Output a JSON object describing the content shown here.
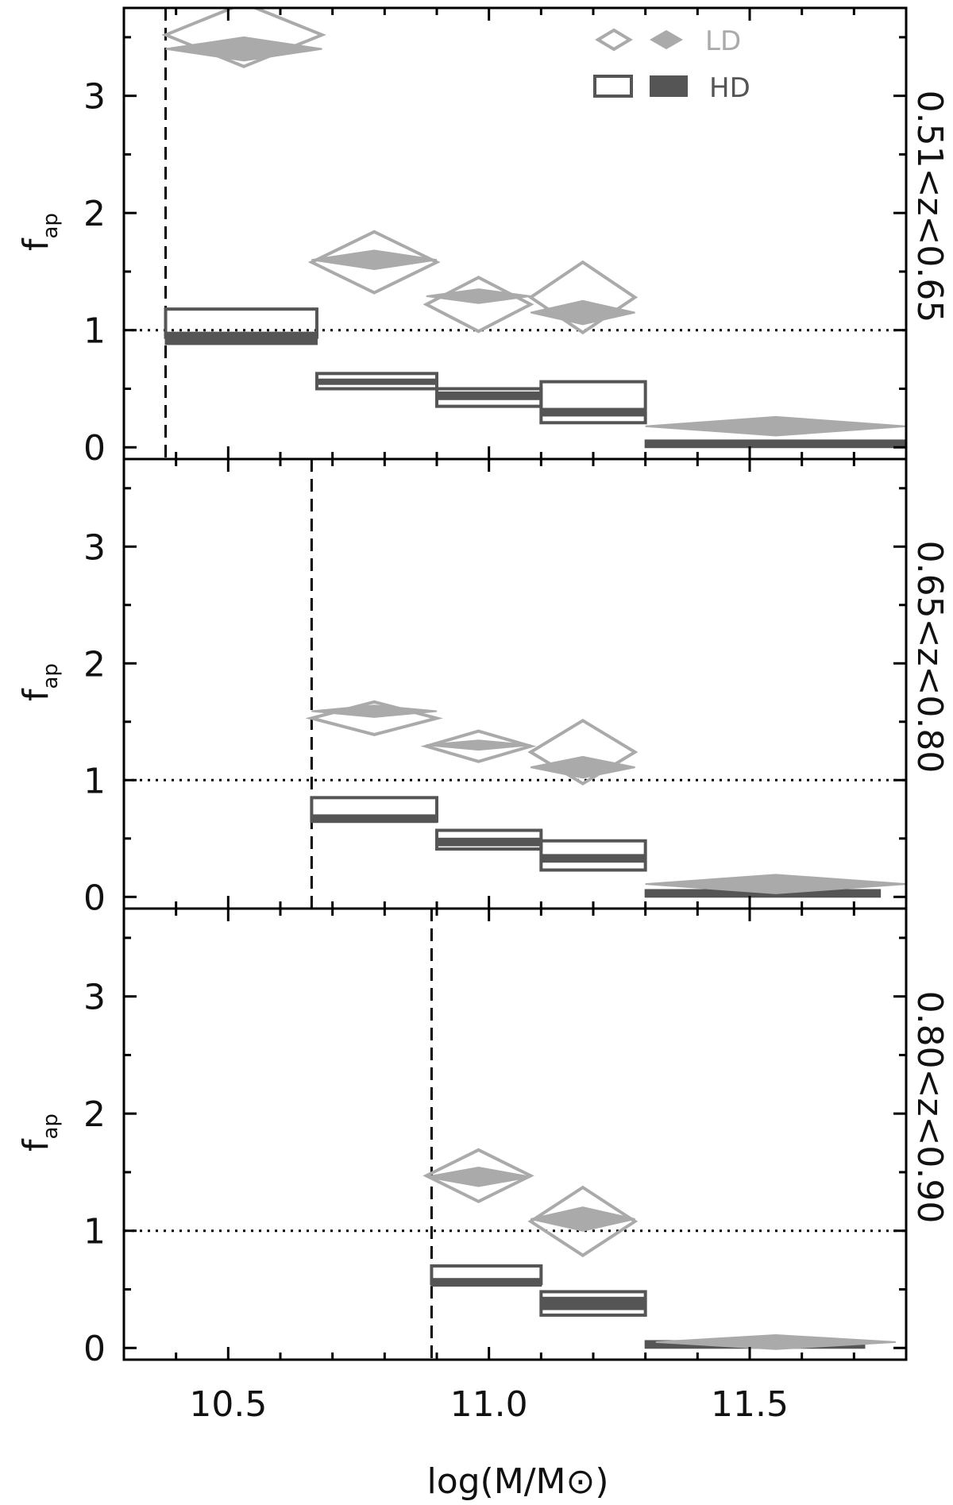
{
  "chart_data": {
    "type": "multi-panel",
    "xlabel": "log(M/M⊙)",
    "ylabel": "f",
    "ylabel_sub": "ap",
    "xlim": [
      10.3,
      11.8
    ],
    "ylim": [
      -0.1,
      3.75
    ],
    "xticks": [
      10.5,
      11.0,
      11.5
    ],
    "xtick_labels": [
      "10.5",
      "11.0",
      "11.5"
    ],
    "yticks": [
      0,
      1,
      2,
      3
    ],
    "ytick_labels": [
      "0",
      "1",
      "2",
      "3"
    ],
    "reference_line": 1.0,
    "legend": {
      "entries": [
        {
          "label": "LD",
          "color": "#aaaaaa"
        },
        {
          "label": "HD",
          "color": "#555555"
        }
      ]
    },
    "colors": {
      "LD": "#aaaaaa",
      "HD": "#555555",
      "axes": "#000000"
    },
    "panels": [
      {
        "label": "0.51<z<0.65",
        "mass_limit": 10.38,
        "LD_open": [
          {
            "x": 10.53,
            "y": 3.52,
            "halfwidth": 0.15,
            "yerr": 0.27
          },
          {
            "x": 10.78,
            "y": 1.58,
            "halfwidth": 0.12,
            "yerr": 0.26
          },
          {
            "x": 10.98,
            "y": 1.22,
            "halfwidth": 0.1,
            "yerr": 0.23
          },
          {
            "x": 11.18,
            "y": 1.28,
            "halfwidth": 0.1,
            "yerr": 0.3
          }
        ],
        "LD_filled": [
          {
            "x": 10.53,
            "y": 3.4,
            "halfwidth": 0.15,
            "yerr": 0.1
          },
          {
            "x": 10.78,
            "y": 1.6,
            "halfwidth": 0.12,
            "yerr": 0.08
          },
          {
            "x": 10.98,
            "y": 1.29,
            "halfwidth": 0.1,
            "yerr": 0.06
          },
          {
            "x": 11.18,
            "y": 1.15,
            "halfwidth": 0.1,
            "yerr": 0.1
          },
          {
            "x": 11.55,
            "y": 0.18,
            "halfwidth": 0.25,
            "yerr": 0.08
          }
        ],
        "HD_open": [
          {
            "x0": 10.38,
            "x1": 10.67,
            "y0": 0.94,
            "y1": 1.18
          },
          {
            "x0": 10.67,
            "x1": 10.9,
            "y0": 0.5,
            "y1": 0.63
          },
          {
            "x0": 10.9,
            "x1": 11.1,
            "y0": 0.35,
            "y1": 0.5
          },
          {
            "x0": 11.1,
            "x1": 11.3,
            "y0": 0.21,
            "y1": 0.56
          }
        ],
        "HD_filled": [
          {
            "x0": 10.38,
            "x1": 10.67,
            "y0": 0.88,
            "y1": 0.98
          },
          {
            "x0": 10.67,
            "x1": 10.9,
            "y0": 0.54,
            "y1": 0.58
          },
          {
            "x0": 10.9,
            "x1": 11.1,
            "y0": 0.41,
            "y1": 0.47
          },
          {
            "x0": 11.1,
            "x1": 11.3,
            "y0": 0.27,
            "y1": 0.33
          },
          {
            "x0": 11.3,
            "x1": 11.8,
            "y0": 0.0,
            "y1": 0.06
          }
        ]
      },
      {
        "label": "0.65<z<0.80",
        "mass_limit": 10.66,
        "LD_open": [
          {
            "x": 10.78,
            "y": 1.53,
            "halfwidth": 0.12,
            "yerr": 0.14
          },
          {
            "x": 10.98,
            "y": 1.29,
            "halfwidth": 0.1,
            "yerr": 0.13
          },
          {
            "x": 11.18,
            "y": 1.24,
            "halfwidth": 0.1,
            "yerr": 0.27
          }
        ],
        "LD_filled": [
          {
            "x": 10.78,
            "y": 1.59,
            "halfwidth": 0.12,
            "yerr": 0.05
          },
          {
            "x": 10.98,
            "y": 1.3,
            "halfwidth": 0.1,
            "yerr": 0.04
          },
          {
            "x": 11.18,
            "y": 1.11,
            "halfwidth": 0.1,
            "yerr": 0.09
          },
          {
            "x": 11.55,
            "y": 0.11,
            "halfwidth": 0.25,
            "yerr": 0.08
          }
        ],
        "HD_open": [
          {
            "x0": 10.66,
            "x1": 10.9,
            "y0": 0.65,
            "y1": 0.85
          },
          {
            "x0": 10.9,
            "x1": 11.1,
            "y0": 0.41,
            "y1": 0.57
          },
          {
            "x0": 11.1,
            "x1": 11.3,
            "y0": 0.23,
            "y1": 0.48
          }
        ],
        "HD_filled": [
          {
            "x0": 10.66,
            "x1": 10.9,
            "y0": 0.64,
            "y1": 0.7
          },
          {
            "x0": 10.9,
            "x1": 11.1,
            "y0": 0.44,
            "y1": 0.5
          },
          {
            "x0": 11.1,
            "x1": 11.3,
            "y0": 0.3,
            "y1": 0.36
          },
          {
            "x0": 11.3,
            "x1": 11.75,
            "y0": 0.0,
            "y1": 0.06
          }
        ]
      },
      {
        "label": "0.80<z<0.90",
        "mass_limit": 10.89,
        "LD_open": [
          {
            "x": 10.98,
            "y": 1.47,
            "halfwidth": 0.1,
            "yerr": 0.22
          },
          {
            "x": 11.18,
            "y": 1.08,
            "halfwidth": 0.1,
            "yerr": 0.29
          }
        ],
        "LD_filled": [
          {
            "x": 10.98,
            "y": 1.46,
            "halfwidth": 0.1,
            "yerr": 0.08
          },
          {
            "x": 11.18,
            "y": 1.1,
            "halfwidth": 0.1,
            "yerr": 0.1
          },
          {
            "x": 11.55,
            "y": 0.05,
            "halfwidth": 0.23,
            "yerr": 0.06
          }
        ],
        "HD_open": [
          {
            "x0": 10.89,
            "x1": 11.1,
            "y0": 0.55,
            "y1": 0.7
          },
          {
            "x0": 11.1,
            "x1": 11.3,
            "y0": 0.28,
            "y1": 0.48
          }
        ],
        "HD_filled": [
          {
            "x0": 10.89,
            "x1": 11.1,
            "y0": 0.53,
            "y1": 0.59
          },
          {
            "x0": 11.1,
            "x1": 11.3,
            "y0": 0.33,
            "y1": 0.43
          },
          {
            "x0": 11.3,
            "x1": 11.72,
            "y0": 0.0,
            "y1": 0.06
          }
        ]
      }
    ]
  }
}
